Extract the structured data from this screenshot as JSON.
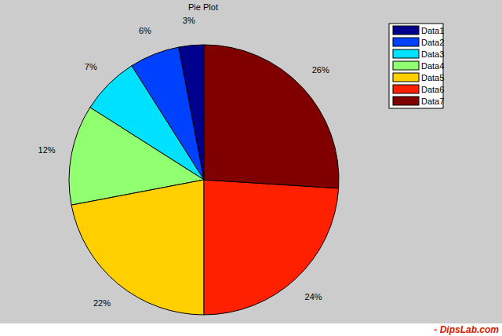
{
  "chart_data": {
    "type": "pie",
    "title": "Pie Plot",
    "categories": [
      "Data1",
      "Data2",
      "Data3",
      "Data4",
      "Data5",
      "Data6",
      "Data7"
    ],
    "values": [
      3,
      6,
      7,
      12,
      22,
      24,
      26
    ],
    "value_labels": [
      "3%",
      "6%",
      "7%",
      "12%",
      "22%",
      "24%",
      "26%"
    ],
    "colors": [
      "#00008f",
      "#0040ff",
      "#00e0ff",
      "#90ff70",
      "#ffcf00",
      "#ff2000",
      "#800000"
    ],
    "data_labels": true,
    "legend": "upper right",
    "annotation": "- DipsLab.com"
  }
}
